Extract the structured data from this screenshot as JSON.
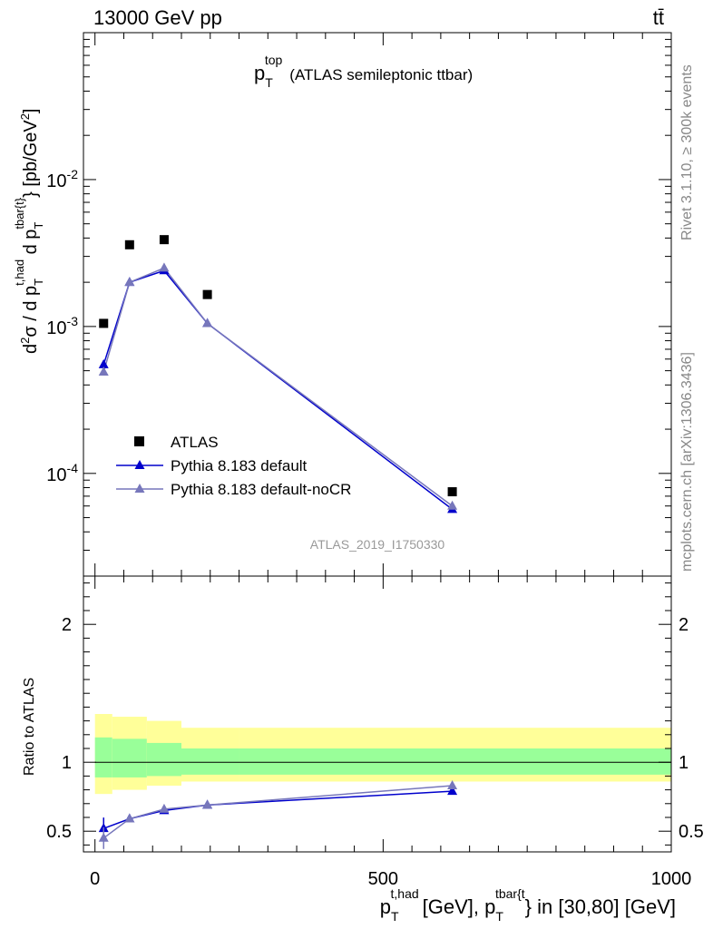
{
  "header": {
    "beam": "13000 GeV pp",
    "process": "tt̄"
  },
  "side_labels": {
    "rivet": "Rivet 3.1.10, ≥ 300k events",
    "mcplots": "mcplots.cern.ch [arXiv:1306.3436]"
  },
  "colors": {
    "data": "#000000",
    "pythia_default": "#0000cc",
    "pythia_nocr": "#7777bb",
    "band_outer": "#ffff99",
    "band_inner": "#99ff99"
  },
  "chart_data": [
    {
      "type": "scatter",
      "panel": "main",
      "title": "p_T^top (ATLAS semileptonic ttbar)",
      "title_main": "p",
      "title_sub": "T",
      "title_sup": "top",
      "title_rest": "(ATLAS semileptonic ttbar)",
      "ylabel": "d²σ / d p_T^{t,had} d p_T^{tbar{t}} [pb/GeV²]",
      "yscale": "log",
      "ylim": [
        2e-05,
        0.1
      ],
      "xlim": [
        -20,
        1000
      ],
      "ytick_labels": [
        "10^{-4}",
        "10^{-3}",
        "10^{-2}"
      ],
      "watermark": "ATLAS_2019_I1750330",
      "legend_position": "center-left",
      "series": [
        {
          "name": "ATLAS",
          "marker": "square",
          "x": [
            15,
            60,
            120,
            195,
            620
          ],
          "values": [
            0.00105,
            0.0036,
            0.0039,
            0.00165,
            7.5e-05
          ]
        },
        {
          "name": "Pythia 8.183 default",
          "marker": "triangle",
          "x": [
            15,
            60,
            120,
            195,
            620
          ],
          "values": [
            0.00055,
            0.002,
            0.0024,
            0.00105,
            5.7e-05
          ]
        },
        {
          "name": "Pythia 8.183 default-noCR",
          "marker": "triangle",
          "x": [
            15,
            60,
            120,
            195,
            620
          ],
          "values": [
            0.00049,
            0.002,
            0.0025,
            0.00105,
            6e-05
          ]
        }
      ]
    },
    {
      "type": "line",
      "panel": "ratio",
      "ylabel": "Ratio to ATLAS",
      "xlabel": "p_T^{t,had} [GeV], p_T^{tbar{t}} in [30,80] [GeV]",
      "xlabel_parts": [
        "p",
        "T",
        "t,had",
        "[GeV], p",
        "T",
        "tbar{t",
        "} in [30,80] [GeV]"
      ],
      "ylim": [
        0.35,
        2.35
      ],
      "xlim": [
        -20,
        1000
      ],
      "xtick_labels": [
        "0",
        "500",
        "1000"
      ],
      "ytick_labels": [
        "0.5",
        "1",
        "2"
      ],
      "bands": {
        "edges": [
          0,
          30,
          90,
          150,
          250,
          1000
        ],
        "outer_lo": [
          0.77,
          0.8,
          0.83,
          0.86,
          0.86
        ],
        "outer_hi": [
          1.35,
          1.33,
          1.3,
          1.25,
          1.25
        ],
        "inner_lo": [
          0.89,
          0.89,
          0.9,
          0.91,
          0.91
        ],
        "inner_hi": [
          1.18,
          1.17,
          1.14,
          1.1,
          1.1
        ]
      },
      "series": [
        {
          "name": "Pythia 8.183 default",
          "x": [
            15,
            60,
            120,
            195,
            620
          ],
          "values": [
            0.52,
            0.59,
            0.65,
            0.69,
            0.79
          ]
        },
        {
          "name": "Pythia 8.183 default-noCR",
          "x": [
            15,
            60,
            120,
            195,
            620
          ],
          "values": [
            0.45,
            0.59,
            0.66,
            0.69,
            0.83
          ]
        }
      ]
    }
  ]
}
